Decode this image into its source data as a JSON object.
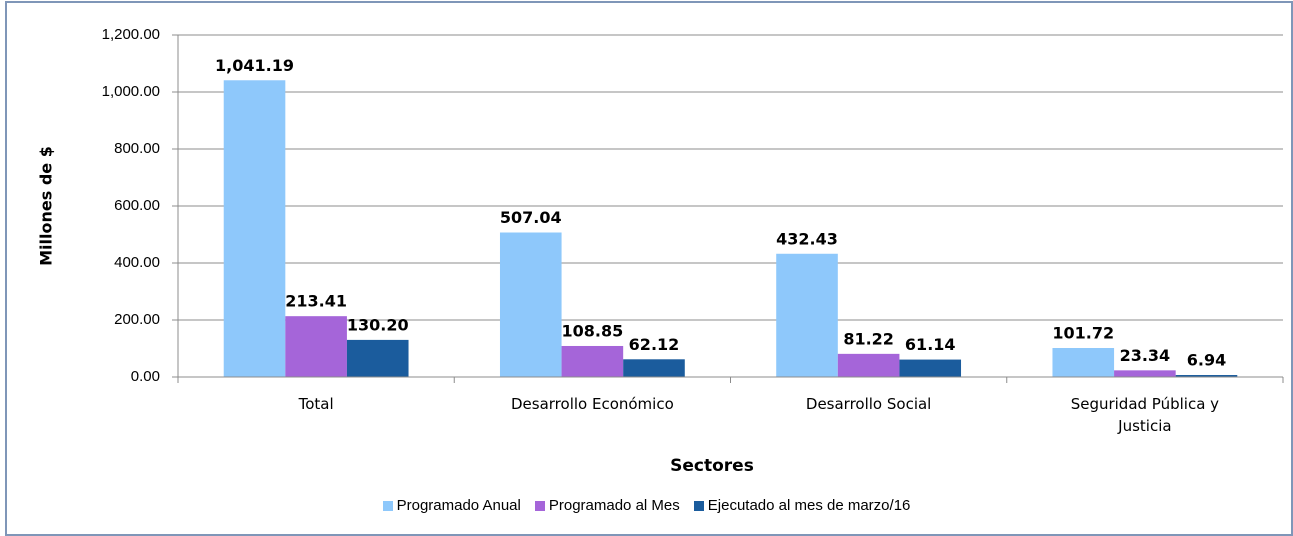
{
  "chart_data": {
    "type": "bar",
    "y_label": "Millones de $",
    "x_label": "Sectores",
    "categories": [
      "Total",
      "Desarrollo Económico",
      "Desarrollo Social",
      "Seguridad  Pública y Justicia"
    ],
    "series": [
      {
        "name": "Programado Anual",
        "color": "#8ec8fb",
        "values": [
          1041.19,
          507.04,
          432.43,
          101.72
        ],
        "value_labels": [
          "1,041.19",
          "507.04",
          "432.43",
          "101.72"
        ]
      },
      {
        "name": "Programado al Mes",
        "color": "#a565d9",
        "values": [
          213.41,
          108.85,
          81.22,
          23.34
        ],
        "value_labels": [
          "213.41",
          "108.85",
          "81.22",
          "23.34"
        ]
      },
      {
        "name": "Ejecutado al mes de marzo/16",
        "color": "#1b5c9d",
        "values": [
          130.2,
          62.12,
          61.14,
          6.94
        ],
        "value_labels": [
          "130.20",
          "62.12",
          "61.14",
          "6.94"
        ]
      }
    ],
    "ylim": [
      0,
      1200
    ],
    "yticks": [
      {
        "value": 0,
        "label": "0.00"
      },
      {
        "value": 200,
        "label": "200.00"
      },
      {
        "value": 400,
        "label": "400.00"
      },
      {
        "value": 600,
        "label": "600.00"
      },
      {
        "value": 800,
        "label": "800.00"
      },
      {
        "value": 1000,
        "label": "1,000.00"
      },
      {
        "value": 1200,
        "label": "1,200.00"
      }
    ],
    "grid": true,
    "legend": "bottom"
  }
}
